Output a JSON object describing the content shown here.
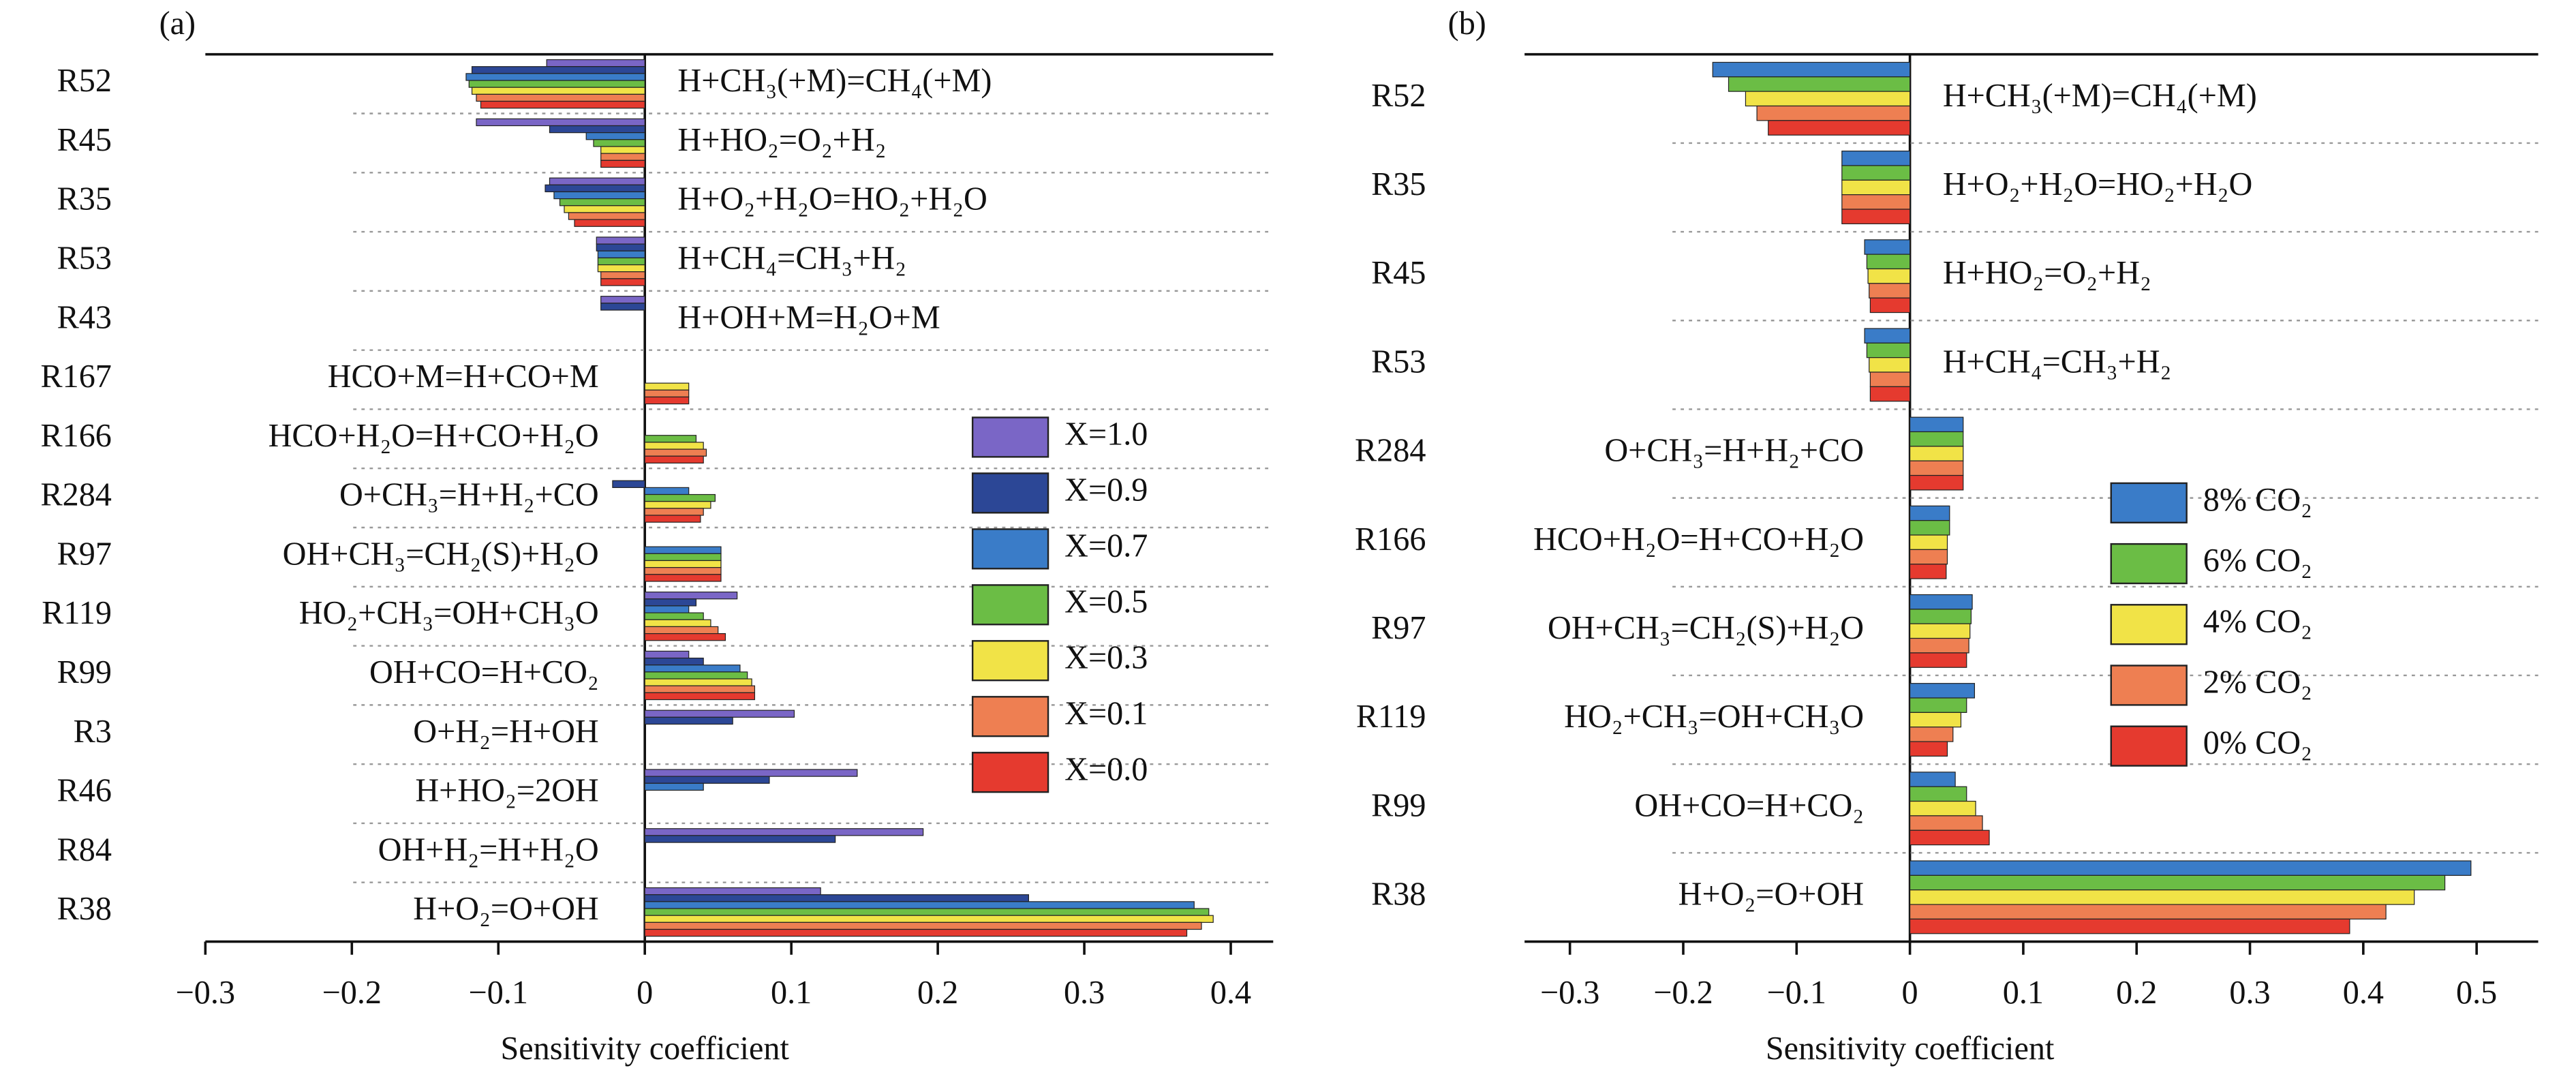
{
  "chart_data": [
    {
      "type": "bar",
      "orientation": "horizontal",
      "panel_label": "(a)",
      "xlabel": "Sensitivity coefficient",
      "categories": [
        "R52",
        "R45",
        "R35",
        "R53",
        "R43",
        "R167",
        "R166",
        "R284",
        "R97",
        "R119",
        "R99",
        "R3",
        "R46",
        "R84",
        "R38"
      ],
      "reaction_labels": [
        "H+CH₃(+M)=CH₄(+M)",
        "H+HO₂=O₂+H₂",
        "H+O₂+H₂O=HO₂+H₂O",
        "H+CH₄=CH₃+H₂",
        "H+OH+M=H₂O+M",
        "HCO+M=H+CO+M",
        "HCO+H₂O=H+CO+H₂O",
        "O+CH₃=H+H₂+CO",
        "OH+CH₃=CH₂(S)+H₂O",
        "HO₂+CH₃=OH+CH₃O",
        "OH+CO=H+CO₂",
        "O+H₂=H+OH",
        "H+HO₂=2OH",
        "OH+H₂=H+H₂O",
        "H+O₂=O+OH"
      ],
      "series": [
        {
          "name": "X=1.0",
          "color": "#7a66c6",
          "values": [
            -0.067,
            -0.115,
            -0.065,
            -0.033,
            -0.03,
            0,
            0,
            0,
            0,
            0.063,
            0.03,
            0.102,
            0.145,
            0.19,
            0.12
          ]
        },
        {
          "name": "X=0.9",
          "color": "#2c4796",
          "values": [
            -0.118,
            -0.065,
            -0.068,
            -0.033,
            -0.03,
            0,
            0,
            -0.022,
            0,
            0.035,
            0.04,
            0.06,
            0.085,
            0.13,
            0.262
          ]
        },
        {
          "name": "X=0.7",
          "color": "#3a7cc8",
          "values": [
            -0.122,
            -0.04,
            -0.062,
            -0.032,
            0,
            0,
            0,
            0.03,
            0.052,
            0.03,
            0.065,
            0,
            0.04,
            0,
            0.375
          ]
        },
        {
          "name": "X=0.5",
          "color": "#6bbd45",
          "values": [
            -0.12,
            -0.035,
            -0.058,
            -0.032,
            0,
            0,
            0.035,
            0.048,
            0.052,
            0.04,
            0.07,
            0,
            0,
            0,
            0.385
          ]
        },
        {
          "name": "X=0.3",
          "color": "#f1e347",
          "values": [
            -0.118,
            -0.03,
            -0.055,
            -0.032,
            0,
            0.03,
            0.04,
            0.045,
            0.052,
            0.045,
            0.073,
            0,
            0,
            0,
            0.388
          ]
        },
        {
          "name": "X=0.1",
          "color": "#ee7f52",
          "values": [
            -0.115,
            -0.03,
            -0.052,
            -0.03,
            0,
            0.03,
            0.042,
            0.04,
            0.052,
            0.05,
            0.075,
            0,
            0,
            0,
            0.38
          ]
        },
        {
          "name": "X=0.0",
          "color": "#e53a2f",
          "values": [
            -0.112,
            -0.03,
            -0.048,
            -0.03,
            0,
            0.03,
            0.04,
            0.038,
            0.052,
            0.055,
            0.075,
            0,
            0,
            0,
            0.37
          ]
        }
      ],
      "xlim": [
        -0.3,
        0.42
      ],
      "xticks": [
        {
          "value": -0.3,
          "label": "−0.3"
        },
        {
          "value": -0.2,
          "label": "−0.2"
        },
        {
          "value": -0.1,
          "label": "−0.1"
        },
        0,
        0.1,
        0.2,
        0.3,
        0.4
      ]
    },
    {
      "type": "bar",
      "orientation": "horizontal",
      "panel_label": "(b)",
      "xlabel": "Sensitivity coefficient",
      "categories": [
        "R52",
        "R35",
        "R45",
        "R53",
        "R284",
        "R166",
        "R97",
        "R119",
        "R99",
        "R38"
      ],
      "reaction_labels": [
        "H+CH₃(+M)=CH₄(+M)",
        "H+O₂+H₂O=HO₂+H₂O",
        "H+HO₂=O₂+H₂",
        "H+CH₄=CH₃+H₂",
        "O+CH₃=H+H₂+CO",
        "HCO+H₂O=H+CO+H₂O",
        "OH+CH₃=CH₂(S)+H₂O",
        "HO₂+CH₃=OH+CH₃O",
        "OH+CO=H+CO₂",
        "H+O₂=O+OH"
      ],
      "series": [
        {
          "name": "8% CO₂",
          "color": "#3a7cc8",
          "values": [
            -0.174,
            -0.06,
            -0.04,
            -0.04,
            0.047,
            0.035,
            0.055,
            0.057,
            0.04,
            0.495
          ]
        },
        {
          "name": "6% CO₂",
          "color": "#6bbd45",
          "values": [
            -0.16,
            -0.06,
            -0.038,
            -0.038,
            0.047,
            0.035,
            0.054,
            0.05,
            0.05,
            0.472
          ]
        },
        {
          "name": "4% CO₂",
          "color": "#f1e347",
          "values": [
            -0.145,
            -0.06,
            -0.037,
            -0.036,
            0.047,
            0.033,
            0.053,
            0.045,
            0.058,
            0.445
          ]
        },
        {
          "name": "2% CO₂",
          "color": "#ee7f52",
          "values": [
            -0.135,
            -0.06,
            -0.036,
            -0.035,
            0.047,
            0.033,
            0.052,
            0.038,
            0.064,
            0.42
          ]
        },
        {
          "name": "0% CO₂",
          "color": "#e53a2f",
          "values": [
            -0.125,
            -0.06,
            -0.035,
            -0.035,
            0.047,
            0.032,
            0.05,
            0.033,
            0.07,
            0.388
          ]
        }
      ],
      "xlim": [
        -0.34,
        0.55
      ],
      "xticks": [
        {
          "value": -0.3,
          "label": "−0.3"
        },
        {
          "value": -0.2,
          "label": "−0.2"
        },
        {
          "value": -0.1,
          "label": "−0.1"
        },
        0,
        0.1,
        0.2,
        0.3,
        0.4,
        0.5
      ]
    }
  ]
}
